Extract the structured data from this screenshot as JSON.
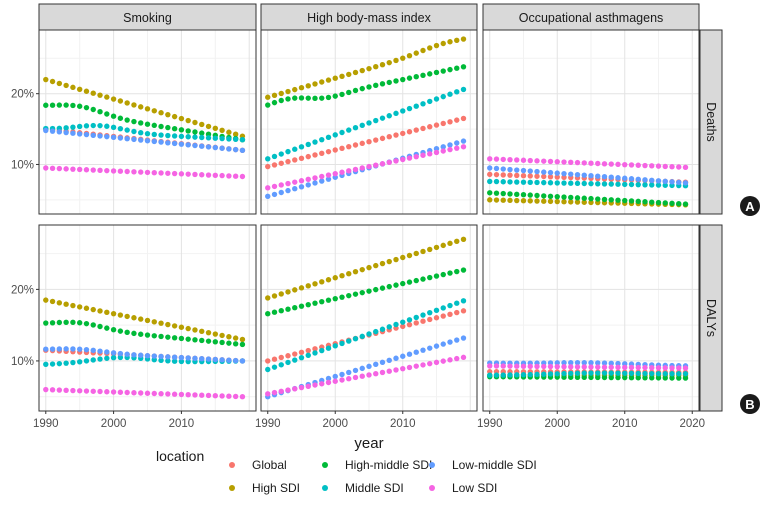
{
  "chart_data": {
    "type": "scatter",
    "xlabel": "year",
    "x_ticks": [
      1990,
      2000,
      2010,
      2020
    ],
    "xlim": [
      1989,
      2021
    ],
    "ylim": [
      3,
      29
    ],
    "y_ticks": [
      10,
      20
    ],
    "y_tick_labels": [
      "10%",
      "20%"
    ],
    "facets_cols": [
      "Smoking",
      "High body-mass index",
      "Occupational asthmagens"
    ],
    "facets_rows": [
      "Deaths",
      "DALYs"
    ],
    "panel_markers": [
      "A",
      "B"
    ],
    "legend": {
      "title": "location",
      "entries": [
        {
          "name": "Global",
          "color": "#F8766D"
        },
        {
          "name": "High SDI",
          "color": "#B79F00"
        },
        {
          "name": "High-middle SDI",
          "color": "#00BA38"
        },
        {
          "name": "Middle SDI",
          "color": "#00BFC4"
        },
        {
          "name": "Low-middle SDI",
          "color": "#619CFF"
        },
        {
          "name": "Low SDI",
          "color": "#F564E3"
        }
      ]
    },
    "panels": [
      {
        "row": "Deaths",
        "col": "Smoking",
        "series": [
          {
            "name": "Global",
            "start": 15.0,
            "end": 12.0
          },
          {
            "name": "High SDI",
            "start": 22.0,
            "end": 14.0
          },
          {
            "name": "High-middle SDI",
            "start": 18.0,
            "end": 13.5
          },
          {
            "name": "Middle SDI",
            "start": 15.0,
            "end": 13.5
          },
          {
            "name": "Low-middle SDI",
            "start": 14.8,
            "end": 12.0
          },
          {
            "name": "Low SDI",
            "start": 9.5,
            "end": 8.3
          }
        ]
      },
      {
        "row": "Deaths",
        "col": "High body-mass index",
        "series": [
          {
            "name": "Global",
            "start": 9.7,
            "end": 16.5
          },
          {
            "name": "High SDI",
            "start": 19.5,
            "end": 27.3
          },
          {
            "name": "High-middle SDI",
            "start": 18.0,
            "end": 23.8
          },
          {
            "name": "Middle SDI",
            "start": 10.8,
            "end": 20.6
          },
          {
            "name": "Low-middle SDI",
            "start": 5.5,
            "end": 13.3
          },
          {
            "name": "Low SDI",
            "start": 6.7,
            "end": 12.5
          }
        ]
      },
      {
        "row": "Deaths",
        "col": "Occupational asthmagens",
        "series": [
          {
            "name": "Global",
            "start": 8.6,
            "end": 7.5
          },
          {
            "name": "High SDI",
            "start": 5.0,
            "end": 4.3
          },
          {
            "name": "High-middle SDI",
            "start": 6.0,
            "end": 4.4
          },
          {
            "name": "Middle SDI",
            "start": 7.6,
            "end": 7.0
          },
          {
            "name": "Low-middle SDI",
            "start": 9.5,
            "end": 7.4
          },
          {
            "name": "Low SDI",
            "start": 10.8,
            "end": 9.6
          }
        ]
      },
      {
        "row": "DALYs",
        "col": "Smoking",
        "series": [
          {
            "name": "Global",
            "start": 11.5,
            "end": 10.0
          },
          {
            "name": "High SDI",
            "start": 18.5,
            "end": 13.0
          },
          {
            "name": "High-middle SDI",
            "start": 15.0,
            "end": 12.3
          },
          {
            "name": "Middle SDI",
            "start": 9.5,
            "end": 10.0
          },
          {
            "name": "Low-middle SDI",
            "start": 11.5,
            "end": 10.0
          },
          {
            "name": "Low SDI",
            "start": 6.0,
            "end": 5.0
          }
        ]
      },
      {
        "row": "DALYs",
        "col": "High body-mass index",
        "series": [
          {
            "name": "Global",
            "start": 10.0,
            "end": 17.0
          },
          {
            "name": "High SDI",
            "start": 18.8,
            "end": 27.0
          },
          {
            "name": "High-middle SDI",
            "start": 16.6,
            "end": 22.7
          },
          {
            "name": "Middle SDI",
            "start": 8.8,
            "end": 18.4
          },
          {
            "name": "Low-middle SDI",
            "start": 5.0,
            "end": 13.2
          },
          {
            "name": "Low SDI",
            "start": 5.4,
            "end": 10.5
          }
        ]
      },
      {
        "row": "DALYs",
        "col": "Occupational asthmagens",
        "series": [
          {
            "name": "Global",
            "start": 8.5,
            "end": 8.4
          },
          {
            "name": "High SDI",
            "start": 8.0,
            "end": 8.0
          },
          {
            "name": "High-middle SDI",
            "start": 7.8,
            "end": 7.6
          },
          {
            "name": "Middle SDI",
            "start": 8.0,
            "end": 8.2
          },
          {
            "name": "Low-middle SDI",
            "start": 9.7,
            "end": 9.3
          },
          {
            "name": "Low SDI",
            "start": 9.3,
            "end": 9.0
          }
        ]
      }
    ]
  }
}
